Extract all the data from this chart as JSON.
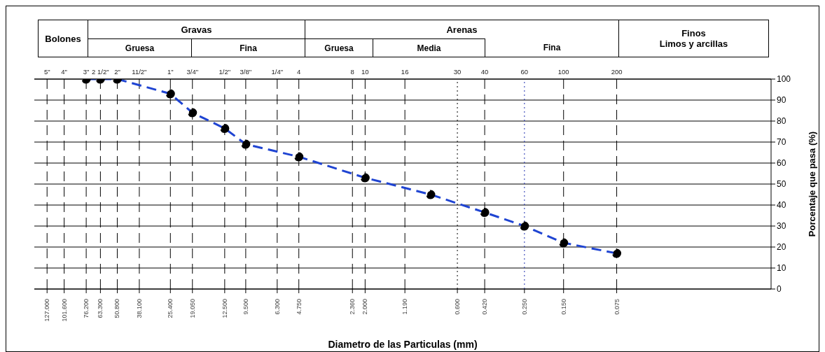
{
  "chart_data": {
    "type": "line",
    "xlabel": "Diametro de las Particulas (mm)",
    "ylabel": "Porcentaje que pasa (%)",
    "annotations": [
      "Bolones",
      "Gravas",
      "Gruesa",
      "Fina",
      "Arenas",
      "Gruesa",
      "Media",
      "Fina",
      "Finos",
      "Limos y arcillas",
      "5\"",
      "4\"",
      "3\"",
      "2 1/2\"",
      "2\"",
      "11/2\"",
      "1\"",
      "3/4\"",
      "1/2\"",
      "3/8\"",
      "1/4\"",
      "4",
      "8",
      "10",
      "16",
      "30",
      "40",
      "60",
      "100",
      "200"
    ],
    "ref_lines": [
      {
        "axis": "x",
        "value": 127,
        "line_style": "dashed"
      },
      {
        "axis": "x",
        "value": 101.6,
        "line_style": "dashed"
      },
      {
        "axis": "x",
        "value": 76.2,
        "line_style": "dashed"
      },
      {
        "axis": "x",
        "value": 63.3,
        "line_style": "dashed"
      },
      {
        "axis": "x",
        "value": 50.8,
        "line_style": "dashed"
      },
      {
        "axis": "x",
        "value": 38.1,
        "line_style": "dashed"
      },
      {
        "axis": "x",
        "value": 25.4,
        "line_style": "dashed"
      },
      {
        "axis": "x",
        "value": 19.05,
        "line_style": "dashed"
      },
      {
        "axis": "x",
        "value": 12.5,
        "line_style": "dashed"
      },
      {
        "axis": "x",
        "value": 9.5,
        "line_style": "dashed"
      },
      {
        "axis": "x",
        "value": 6.3,
        "line_style": "dashed"
      },
      {
        "axis": "x",
        "value": 4.75,
        "line_style": "dashed"
      },
      {
        "axis": "x",
        "value": 2.36,
        "line_style": "dashed"
      },
      {
        "axis": "x",
        "value": 2,
        "line_style": "dashed"
      },
      {
        "axis": "x",
        "value": 1.19,
        "line_style": "dashed"
      },
      {
        "axis": "x",
        "value": 0.6,
        "line_style": "dotted"
      },
      {
        "axis": "x",
        "value": 0.42,
        "line_style": "dashed"
      },
      {
        "axis": "x",
        "value": 0.25,
        "line_style": "dotted",
        "color": "#1f2fb0"
      },
      {
        "axis": "x",
        "value": 0.15,
        "line_style": "dashed"
      },
      {
        "axis": "x",
        "value": 0.075,
        "line_style": "dashed"
      }
    ],
    "log": "x",
    "xlim": [
      150,
      0.01
    ],
    "ylim": [
      0,
      100
    ],
    "yticks": [
      0,
      10,
      20,
      30,
      40,
      50,
      60,
      70,
      80,
      90,
      100
    ],
    "xticks": [
      {
        "value": 127,
        "label": "127.000"
      },
      {
        "value": 101.6,
        "label": "101.600"
      },
      {
        "value": 76.2,
        "label": "76.200"
      },
      {
        "value": 63.3,
        "label": "63.300"
      },
      {
        "value": 50.8,
        "label": "50.800"
      },
      {
        "value": 38.1,
        "label": "38.100"
      },
      {
        "value": 25.4,
        "label": "25.400"
      },
      {
        "value": 19.05,
        "label": "19.050"
      },
      {
        "value": 12.5,
        "label": "12.500"
      },
      {
        "value": 9.5,
        "label": "9.500"
      },
      {
        "value": 6.3,
        "label": "6.300"
      },
      {
        "value": 4.75,
        "label": "4.750"
      },
      {
        "value": 2.36,
        "label": "2.360"
      },
      {
        "value": 2,
        "label": "2.000"
      },
      {
        "value": 1.19,
        "label": "1.190"
      },
      {
        "value": 0.6,
        "label": "0.600"
      },
      {
        "value": 0.42,
        "label": "0.420"
      },
      {
        "value": 0.25,
        "label": "0.250"
      },
      {
        "value": 0.15,
        "label": "0.150"
      },
      {
        "value": 0.075,
        "label": "0.075"
      }
    ],
    "grid": "y",
    "legend": false,
    "marker": "circle",
    "line_style": "dashed",
    "x": [
      76.2,
      63.3,
      50.8,
      25.4,
      19.05,
      12.5,
      9.5,
      4.75,
      2,
      0.85,
      0.42,
      0.25,
      0.15,
      0.075
    ],
    "series": [
      {
        "color": "#1f44d2",
        "values": [
          100,
          100,
          100,
          93,
          84,
          76.5,
          69,
          63,
          53,
          45,
          36.5,
          30,
          22,
          17
        ]
      }
    ]
  }
}
